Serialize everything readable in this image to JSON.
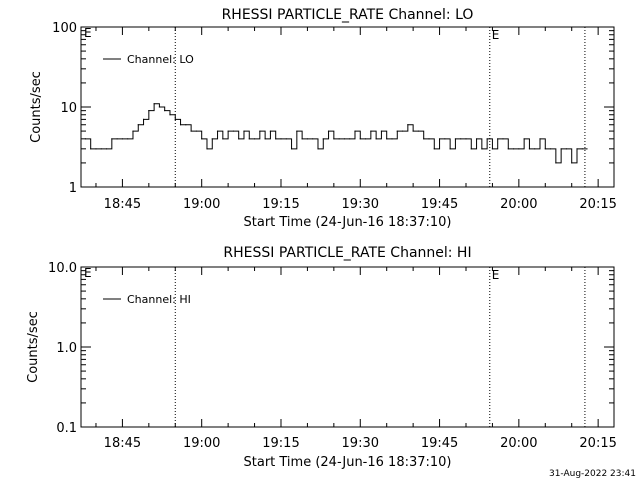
{
  "footer": {
    "timestamp": "31-Aug-2022 23:41"
  },
  "chart_data": [
    {
      "type": "line",
      "title": "RHESSI PARTICLE_RATE Channel: LO",
      "xlabel": "Start Time (24-Jun-16 18:37:10)",
      "ylabel": "Counts/sec",
      "yscale": "log",
      "ylim": [
        1,
        100
      ],
      "yticks": [
        "1",
        "10",
        "100"
      ],
      "xlim": [
        "18:37:10",
        "20:18:00"
      ],
      "xticks": [
        "18:45",
        "19:00",
        "19:15",
        "19:30",
        "19:45",
        "20:00",
        "20:15"
      ],
      "grid": false,
      "legend_position": "top-left",
      "markers": [
        {
          "time": "18:55:00",
          "label": ""
        },
        {
          "time": "19:54:30",
          "label": "E"
        },
        {
          "time": "20:12:30",
          "label": ""
        }
      ],
      "corner_label": "E",
      "series": [
        {
          "name": "Channel: LO",
          "x": [
            "18:38:00",
            "18:39:00",
            "18:40:00",
            "18:41:00",
            "18:42:00",
            "18:43:00",
            "18:44:00",
            "18:45:00",
            "18:46:00",
            "18:47:00",
            "18:48:00",
            "18:49:00",
            "18:50:00",
            "18:51:00",
            "18:52:00",
            "18:53:00",
            "18:54:00",
            "18:55:00",
            "18:56:00",
            "18:57:00",
            "18:58:00",
            "18:59:00",
            "19:00:00",
            "19:01:00",
            "19:02:00",
            "19:03:00",
            "19:04:00",
            "19:05:00",
            "19:06:00",
            "19:07:00",
            "19:08:00",
            "19:09:00",
            "19:10:00",
            "19:11:00",
            "19:12:00",
            "19:13:00",
            "19:14:00",
            "19:15:00",
            "19:16:00",
            "19:17:00",
            "19:18:00",
            "19:19:00",
            "19:20:00",
            "19:21:00",
            "19:22:00",
            "19:23:00",
            "19:24:00",
            "19:25:00",
            "19:26:00",
            "19:27:00",
            "19:28:00",
            "19:29:00",
            "19:30:00",
            "19:31:00",
            "19:32:00",
            "19:33:00",
            "19:34:00",
            "19:35:00",
            "19:36:00",
            "19:37:00",
            "19:38:00",
            "19:39:00",
            "19:40:00",
            "19:41:00",
            "19:42:00",
            "19:43:00",
            "19:44:00",
            "19:45:00",
            "19:46:00",
            "19:47:00",
            "19:48:00",
            "19:49:00",
            "19:50:00",
            "19:51:00",
            "19:52:00",
            "19:53:00",
            "19:54:00",
            "19:55:00",
            "19:56:00",
            "19:57:00",
            "19:58:00",
            "19:59:00",
            "20:00:00",
            "20:01:00",
            "20:02:00",
            "20:03:00",
            "20:04:00",
            "20:05:00",
            "20:06:00",
            "20:07:00",
            "20:08:00",
            "20:09:00",
            "20:10:00",
            "20:11:00",
            "20:12:00"
          ],
          "values": [
            4,
            3,
            3,
            3,
            3,
            4,
            4,
            4,
            4,
            5,
            6,
            7,
            9,
            11,
            10,
            9,
            8,
            7,
            6,
            6,
            5,
            5,
            4,
            3,
            4,
            5,
            4,
            5,
            5,
            4,
            5,
            4,
            4,
            5,
            4,
            5,
            4,
            4,
            4,
            3,
            5,
            4,
            4,
            4,
            3,
            4,
            5,
            4,
            4,
            4,
            4,
            5,
            4,
            4,
            5,
            4,
            5,
            4,
            4,
            5,
            5,
            6,
            5,
            5,
            4,
            4,
            3,
            4,
            4,
            3,
            4,
            4,
            4,
            3,
            4,
            3,
            4,
            3,
            4,
            4,
            3,
            3,
            3,
            4,
            3,
            3,
            4,
            3,
            3,
            2,
            3,
            3,
            2,
            3,
            3
          ]
        }
      ]
    },
    {
      "type": "line",
      "title": "RHESSI PARTICLE_RATE Channel: HI",
      "xlabel": "Start Time (24-Jun-16 18:37:10)",
      "ylabel": "Counts/sec",
      "yscale": "log",
      "ylim": [
        0.1,
        10
      ],
      "yticks": [
        "0.1",
        "1.0",
        "10.0"
      ],
      "xlim": [
        "18:37:10",
        "20:18:00"
      ],
      "xticks": [
        "18:45",
        "19:00",
        "19:15",
        "19:30",
        "19:45",
        "20:00",
        "20:15"
      ],
      "grid": false,
      "legend_position": "top-left",
      "markers": [
        {
          "time": "18:55:00",
          "label": ""
        },
        {
          "time": "19:54:30",
          "label": "E"
        },
        {
          "time": "20:12:30",
          "label": ""
        }
      ],
      "corner_label": "E",
      "series": [
        {
          "name": "Channel: HI",
          "x": [],
          "values": []
        }
      ]
    }
  ]
}
